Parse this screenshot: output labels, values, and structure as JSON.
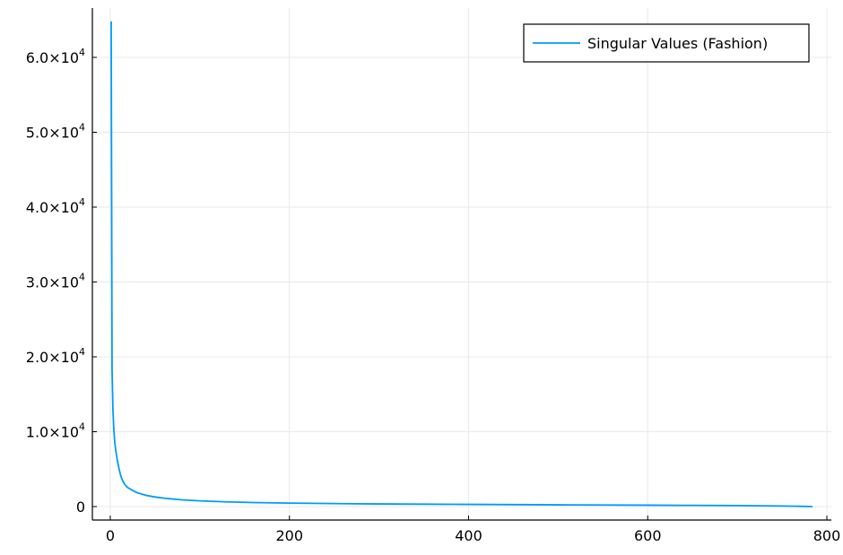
{
  "chart_data": {
    "type": "line",
    "title": "",
    "xlabel": "",
    "ylabel": "",
    "xlim": [
      0,
      800
    ],
    "ylim": [
      0,
      65000
    ],
    "grid": true,
    "legend_position": "top-right",
    "x_ticks": [
      {
        "value": 0,
        "label": "0"
      },
      {
        "value": 200,
        "label": "200"
      },
      {
        "value": 400,
        "label": "400"
      },
      {
        "value": 600,
        "label": "600"
      },
      {
        "value": 800,
        "label": "800"
      }
    ],
    "y_ticks": [
      {
        "value": 0,
        "mantissa": "0",
        "exponent": ""
      },
      {
        "value": 10000,
        "mantissa": "1.0×10",
        "exponent": "4"
      },
      {
        "value": 20000,
        "mantissa": "2.0×10",
        "exponent": "4"
      },
      {
        "value": 30000,
        "mantissa": "3.0×10",
        "exponent": "4"
      },
      {
        "value": 40000,
        "mantissa": "4.0×10",
        "exponent": "4"
      },
      {
        "value": 50000,
        "mantissa": "5.0×10",
        "exponent": "4"
      },
      {
        "value": 60000,
        "mantissa": "6.0×10",
        "exponent": "4"
      }
    ],
    "series": [
      {
        "name": "Singular Values (Fashion)",
        "color": "#009AFA",
        "points": [
          [
            1,
            64800
          ],
          [
            2,
            18200
          ],
          [
            3,
            12800
          ],
          [
            4,
            10200
          ],
          [
            5,
            8600
          ],
          [
            6,
            7600
          ],
          [
            7,
            6800
          ],
          [
            8,
            6100
          ],
          [
            9,
            5500
          ],
          [
            10,
            4900
          ],
          [
            12,
            4000
          ],
          [
            14,
            3400
          ],
          [
            16,
            3000
          ],
          [
            18,
            2700
          ],
          [
            20,
            2500
          ],
          [
            25,
            2150
          ],
          [
            30,
            1850
          ],
          [
            40,
            1500
          ],
          [
            50,
            1280
          ],
          [
            60,
            1120
          ],
          [
            80,
            900
          ],
          [
            100,
            760
          ],
          [
            130,
            630
          ],
          [
            160,
            540
          ],
          [
            200,
            460
          ],
          [
            250,
            400
          ],
          [
            300,
            350
          ],
          [
            350,
            320
          ],
          [
            400,
            290
          ],
          [
            450,
            260
          ],
          [
            500,
            235
          ],
          [
            550,
            210
          ],
          [
            600,
            185
          ],
          [
            650,
            160
          ],
          [
            700,
            130
          ],
          [
            740,
            90
          ],
          [
            770,
            40
          ],
          [
            784,
            0
          ]
        ]
      }
    ]
  }
}
